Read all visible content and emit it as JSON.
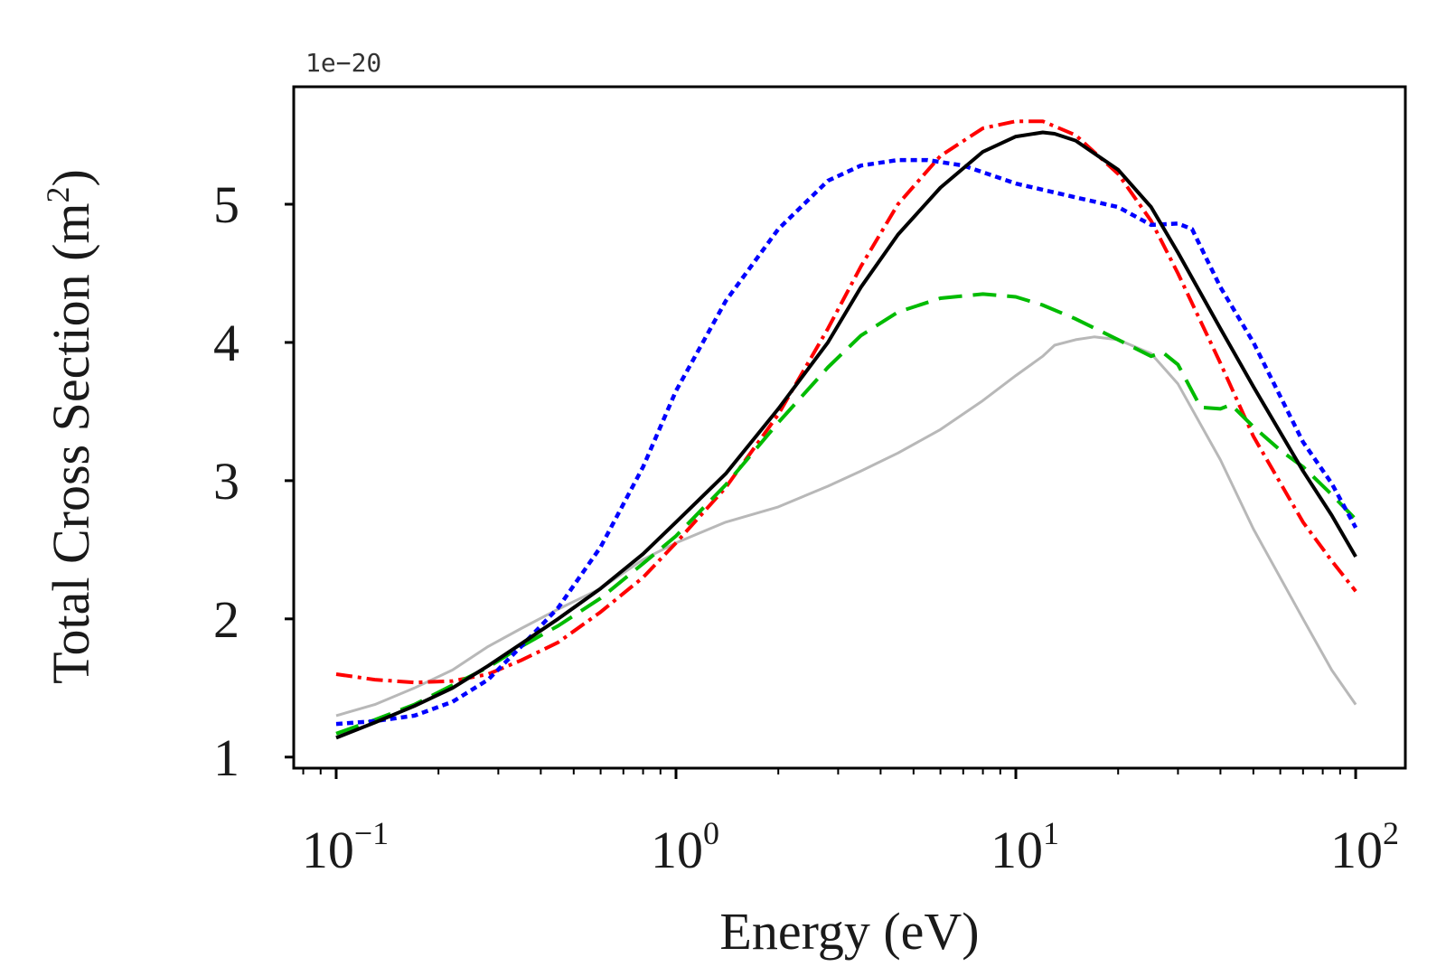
{
  "chart_data": {
    "type": "line",
    "title": "",
    "xlabel": "Energy (eV)",
    "ylabel_main": "Total Cross Section (m",
    "ylabel_sup": "2",
    "ylabel_close": ")",
    "offset_text": "1e−20",
    "x_scale": "log",
    "xlim": [
      0.075,
      140
    ],
    "ylim": [
      0.92,
      5.85
    ],
    "y_ticks": [
      1,
      2,
      3,
      4,
      5
    ],
    "y_tick_labels": [
      "1",
      "2",
      "3",
      "4",
      "5"
    ],
    "x_major_ticks": [
      {
        "value": 0.1,
        "base": "10",
        "exp": "−1"
      },
      {
        "value": 1,
        "base": "10",
        "exp": "0"
      },
      {
        "value": 10,
        "base": "10",
        "exp": "1"
      },
      {
        "value": 100,
        "base": "10",
        "exp": "2"
      }
    ],
    "grid": false,
    "legend": "none",
    "series": [
      {
        "name": "gray-solid",
        "color": "#b8b8b8",
        "dash": "",
        "width": 3,
        "x": [
          0.1,
          0.13,
          0.17,
          0.22,
          0.28,
          0.35,
          0.45,
          0.6,
          0.8,
          1.0,
          1.4,
          2.0,
          2.8,
          3.5,
          4.5,
          6,
          8,
          10,
          12,
          13,
          15,
          17,
          20,
          25,
          30,
          40,
          50,
          70,
          85,
          100
        ],
        "values": [
          1.3,
          1.38,
          1.5,
          1.63,
          1.8,
          1.93,
          2.07,
          2.22,
          2.43,
          2.55,
          2.7,
          2.81,
          2.96,
          3.07,
          3.2,
          3.37,
          3.58,
          3.76,
          3.9,
          3.98,
          4.02,
          4.04,
          4.02,
          3.92,
          3.7,
          3.15,
          2.65,
          2.0,
          1.63,
          1.38
        ]
      },
      {
        "name": "red-dashdot",
        "color": "#ff0000",
        "dash": "18,6,4,6",
        "width": 4,
        "x": [
          0.1,
          0.13,
          0.17,
          0.22,
          0.28,
          0.35,
          0.45,
          0.6,
          0.8,
          1.0,
          1.4,
          2.0,
          2.8,
          3.5,
          4.5,
          6,
          8,
          10,
          12,
          15,
          20,
          25,
          30,
          40,
          50,
          70,
          85,
          100
        ],
        "values": [
          1.6,
          1.56,
          1.54,
          1.55,
          1.6,
          1.7,
          1.83,
          2.05,
          2.3,
          2.55,
          2.95,
          3.48,
          4.1,
          4.55,
          5.0,
          5.35,
          5.55,
          5.6,
          5.6,
          5.5,
          5.22,
          4.88,
          4.5,
          3.85,
          3.32,
          2.7,
          2.42,
          2.2
        ]
      },
      {
        "name": "green-dashed",
        "color": "#00bb00",
        "dash": "26,12",
        "width": 4,
        "x": [
          0.1,
          0.13,
          0.17,
          0.22,
          0.28,
          0.35,
          0.45,
          0.6,
          0.8,
          1.0,
          1.4,
          2.0,
          2.8,
          3.5,
          4.5,
          6,
          8,
          10,
          12,
          15,
          20,
          25,
          27,
          30,
          35,
          40,
          43,
          50,
          60,
          70,
          85,
          100
        ],
        "values": [
          1.17,
          1.27,
          1.38,
          1.52,
          1.65,
          1.8,
          1.95,
          2.15,
          2.4,
          2.6,
          2.97,
          3.42,
          3.82,
          4.05,
          4.22,
          4.32,
          4.35,
          4.33,
          4.27,
          4.17,
          4.02,
          3.9,
          3.93,
          3.84,
          3.53,
          3.52,
          3.55,
          3.39,
          3.22,
          3.1,
          2.9,
          2.72
        ]
      },
      {
        "name": "blue-dotted",
        "color": "#0000ff",
        "dash": "7,5",
        "width": 4.5,
        "x": [
          0.1,
          0.13,
          0.17,
          0.22,
          0.28,
          0.35,
          0.45,
          0.6,
          0.8,
          1.0,
          1.4,
          2.0,
          2.8,
          3.5,
          4.5,
          5.5,
          7,
          10,
          15,
          20,
          25,
          30,
          33,
          40,
          50,
          70,
          85,
          100
        ],
        "values": [
          1.24,
          1.26,
          1.3,
          1.4,
          1.56,
          1.8,
          2.08,
          2.52,
          3.1,
          3.65,
          4.3,
          4.82,
          5.17,
          5.28,
          5.32,
          5.32,
          5.28,
          5.15,
          5.05,
          4.98,
          4.85,
          4.86,
          4.82,
          4.4,
          4.0,
          3.28,
          2.98,
          2.66
        ]
      },
      {
        "name": "black-solid",
        "color": "#000000",
        "dash": "",
        "width": 4,
        "x": [
          0.1,
          0.13,
          0.17,
          0.22,
          0.28,
          0.35,
          0.45,
          0.6,
          0.8,
          1.0,
          1.4,
          2.0,
          2.8,
          3.5,
          4.5,
          6,
          8,
          10,
          12,
          13,
          15,
          20,
          25,
          30,
          40,
          50,
          70,
          85,
          100
        ],
        "values": [
          1.14,
          1.25,
          1.37,
          1.5,
          1.66,
          1.82,
          2.0,
          2.22,
          2.47,
          2.7,
          3.05,
          3.52,
          4.0,
          4.4,
          4.78,
          5.12,
          5.38,
          5.49,
          5.52,
          5.51,
          5.46,
          5.25,
          4.98,
          4.65,
          4.1,
          3.68,
          3.07,
          2.75,
          2.45
        ]
      }
    ]
  }
}
